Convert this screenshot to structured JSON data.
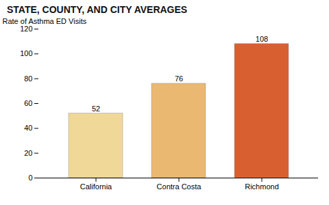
{
  "chart_data": {
    "type": "bar",
    "title": "STATE, COUNTY, AND CITY AVERAGES",
    "categories": [
      "California",
      "Contra Costa",
      "Richmond"
    ],
    "values": [
      52,
      76,
      108
    ],
    "colors": [
      "#f0d898",
      "#eab870",
      "#d86030"
    ],
    "ylabel": "Rate of Asthma ED Visits",
    "ylim": [
      0,
      120
    ],
    "yticks": [
      0,
      20,
      40,
      60,
      80,
      100,
      120
    ],
    "data_labels": true,
    "grid": false
  }
}
